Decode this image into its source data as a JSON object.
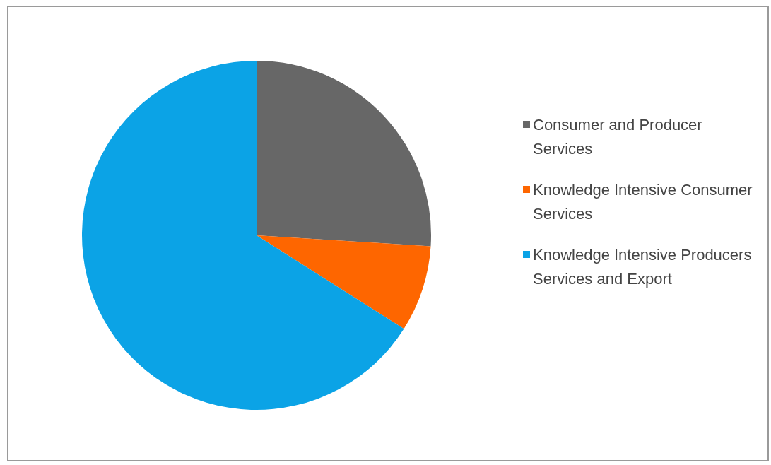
{
  "chart_data": {
    "type": "pie",
    "categories": [
      "Consumer and Producer Services",
      "Knowledge Intensive Consumer Services",
      "Knowledge Intensive Producers Services and Export"
    ],
    "values": [
      26,
      8,
      66
    ],
    "colors": [
      "#676767",
      "#fe6600",
      "#0ba3e6"
    ],
    "legend": "right"
  }
}
